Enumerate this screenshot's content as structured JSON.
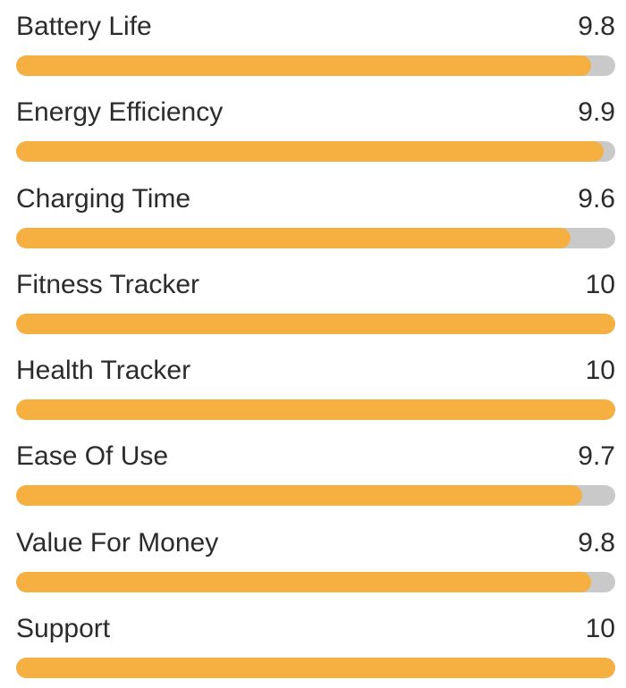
{
  "chart_data": {
    "type": "bar",
    "orientation": "horizontal",
    "title": "",
    "xlabel": "",
    "ylabel": "",
    "xlim": [
      0,
      10
    ],
    "grid": false,
    "legend": false,
    "bar_color": "#f6b042",
    "track_color": "#c9c9c9",
    "text_color": "#2b2b2b",
    "categories": [
      "Battery Life",
      "Energy Efficiency",
      "Charging Time",
      "Fitness Tracker",
      "Health Tracker",
      "Ease Of Use",
      "Value For Money",
      "Support"
    ],
    "values": [
      9.8,
      9.9,
      9.6,
      10,
      10,
      9.7,
      9.8,
      10
    ],
    "rows": [
      {
        "label": "Battery Life",
        "value_label": "9.8",
        "value": 9.8,
        "fill_percent": 96
      },
      {
        "label": "Energy Efficiency",
        "value_label": "9.9",
        "value": 9.9,
        "fill_percent": 98
      },
      {
        "label": "Charging Time",
        "value_label": "9.6",
        "value": 9.6,
        "fill_percent": 92.5
      },
      {
        "label": "Fitness Tracker",
        "value_label": "10",
        "value": 10,
        "fill_percent": 100
      },
      {
        "label": "Health Tracker",
        "value_label": "10",
        "value": 10,
        "fill_percent": 100
      },
      {
        "label": "Ease Of Use",
        "value_label": "9.7",
        "value": 9.7,
        "fill_percent": 94.5
      },
      {
        "label": "Value For Money",
        "value_label": "9.8",
        "value": 9.8,
        "fill_percent": 96
      },
      {
        "label": "Support",
        "value_label": "10",
        "value": 10,
        "fill_percent": 100
      }
    ]
  }
}
